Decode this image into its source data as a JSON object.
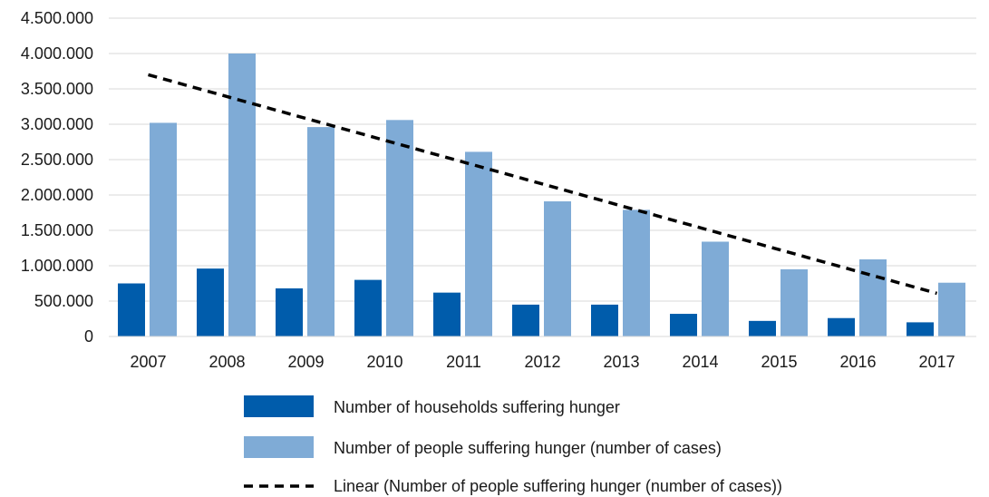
{
  "chart_data": {
    "type": "bar",
    "categories": [
      "2007",
      "2008",
      "2009",
      "2010",
      "2011",
      "2012",
      "2013",
      "2014",
      "2015",
      "2016",
      "2017"
    ],
    "series": [
      {
        "name": "Number of households suffering hunger",
        "color": "#005cab",
        "values": [
          750000,
          960000,
          680000,
          800000,
          620000,
          450000,
          450000,
          320000,
          220000,
          260000,
          200000
        ]
      },
      {
        "name": "Number of people suffering hunger (number of cases)",
        "color": "#7fabd6",
        "values": [
          3020000,
          4000000,
          2960000,
          3060000,
          2610000,
          1910000,
          1790000,
          1340000,
          950000,
          1090000,
          760000
        ]
      }
    ],
    "trendline": {
      "name": "Linear (Number of people suffering hunger (number of cases))",
      "style": "dashed",
      "color": "#000000",
      "start": 3700000,
      "end": 610000
    },
    "ylim": [
      0,
      4500000
    ],
    "yticks": [
      "0",
      "500.000",
      "1.000.000",
      "1.500.000",
      "2.000.000",
      "2.500.000",
      "3.000.000",
      "3.500.000",
      "4.000.000",
      "4.500.000"
    ],
    "grid": true,
    "legend_position": "bottom",
    "title": "",
    "xlabel": "",
    "ylabel": ""
  }
}
